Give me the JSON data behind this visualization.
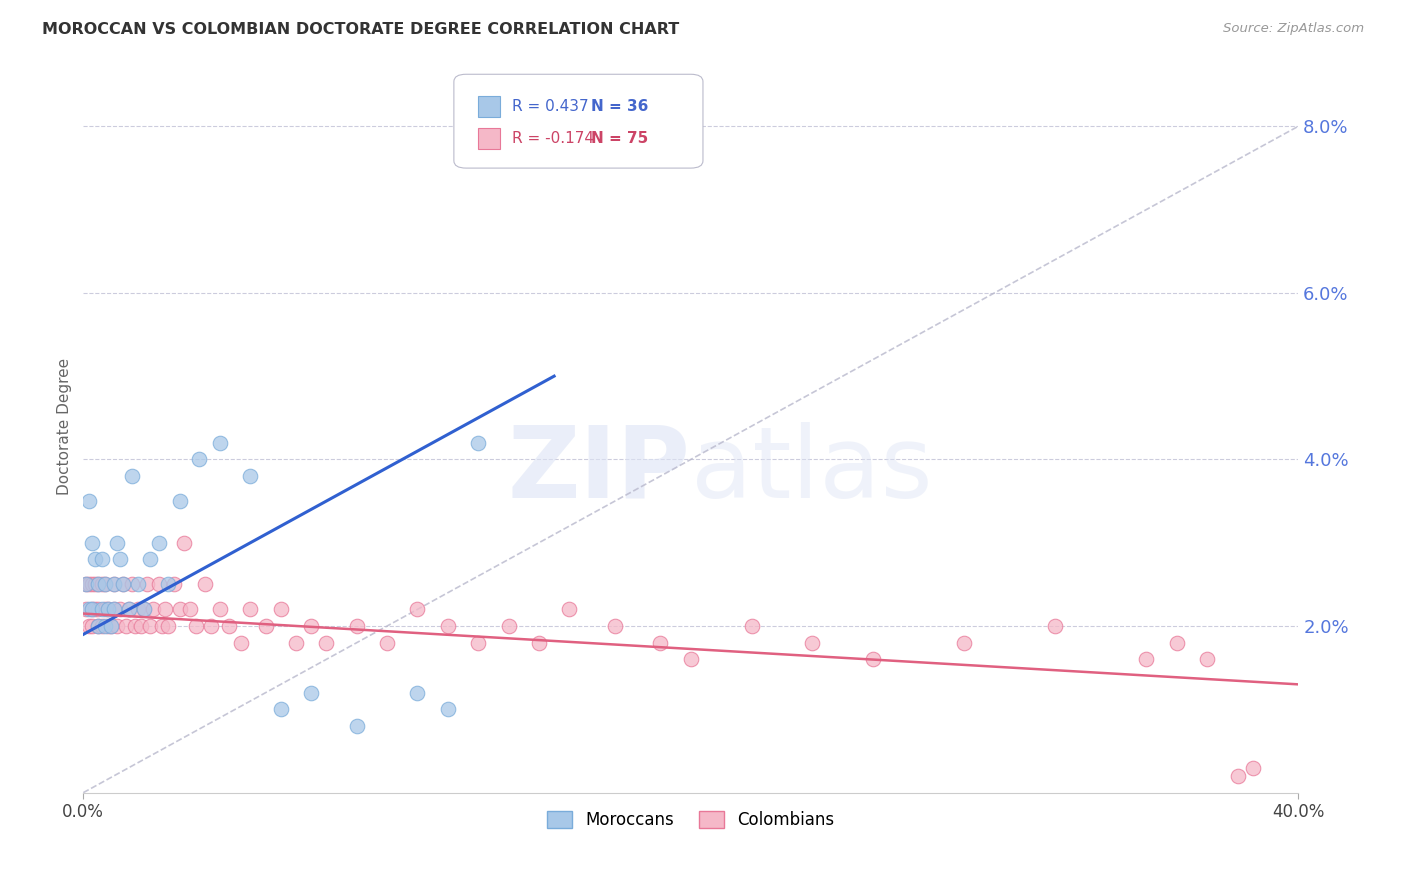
{
  "title": "MOROCCAN VS COLOMBIAN DOCTORATE DEGREE CORRELATION CHART",
  "source": "Source: ZipAtlas.com",
  "ylabel": "Doctorate Degree",
  "xlim": [
    0.0,
    0.4
  ],
  "ylim": [
    0.0,
    0.088
  ],
  "moroccan_color": "#a8c8e8",
  "moroccan_edge": "#7aacda",
  "colombian_color": "#f5b8c8",
  "colombian_edge": "#e87898",
  "blue_line_color": "#3060d0",
  "pink_line_color": "#e06080",
  "dashed_line_color": "#b8b8cc",
  "R_moroccan": 0.437,
  "N_moroccan": 36,
  "R_colombian": -0.174,
  "N_colombian": 75,
  "watermark": "ZIPatlas",
  "moroccan_x": [
    0.001,
    0.002,
    0.002,
    0.003,
    0.003,
    0.004,
    0.005,
    0.005,
    0.006,
    0.006,
    0.007,
    0.007,
    0.008,
    0.009,
    0.01,
    0.01,
    0.011,
    0.012,
    0.013,
    0.015,
    0.016,
    0.018,
    0.02,
    0.022,
    0.025,
    0.028,
    0.032,
    0.038,
    0.045,
    0.055,
    0.065,
    0.075,
    0.09,
    0.11,
    0.12,
    0.13
  ],
  "moroccan_y": [
    0.025,
    0.022,
    0.035,
    0.03,
    0.022,
    0.028,
    0.02,
    0.025,
    0.022,
    0.028,
    0.02,
    0.025,
    0.022,
    0.02,
    0.025,
    0.022,
    0.03,
    0.028,
    0.025,
    0.022,
    0.038,
    0.025,
    0.022,
    0.028,
    0.03,
    0.025,
    0.035,
    0.04,
    0.042,
    0.038,
    0.01,
    0.012,
    0.008,
    0.012,
    0.01,
    0.042
  ],
  "colombian_x": [
    0.001,
    0.001,
    0.002,
    0.002,
    0.003,
    0.003,
    0.003,
    0.004,
    0.004,
    0.005,
    0.005,
    0.005,
    0.006,
    0.006,
    0.007,
    0.007,
    0.008,
    0.008,
    0.009,
    0.01,
    0.01,
    0.011,
    0.012,
    0.013,
    0.014,
    0.015,
    0.016,
    0.017,
    0.018,
    0.019,
    0.02,
    0.021,
    0.022,
    0.023,
    0.025,
    0.026,
    0.027,
    0.028,
    0.03,
    0.032,
    0.033,
    0.035,
    0.037,
    0.04,
    0.042,
    0.045,
    0.048,
    0.052,
    0.055,
    0.06,
    0.065,
    0.07,
    0.075,
    0.08,
    0.09,
    0.1,
    0.11,
    0.12,
    0.13,
    0.14,
    0.15,
    0.16,
    0.175,
    0.19,
    0.2,
    0.22,
    0.24,
    0.26,
    0.29,
    0.32,
    0.35,
    0.36,
    0.37,
    0.38,
    0.385
  ],
  "colombian_y": [
    0.022,
    0.025,
    0.02,
    0.025,
    0.022,
    0.025,
    0.02,
    0.022,
    0.025,
    0.02,
    0.022,
    0.025,
    0.02,
    0.025,
    0.022,
    0.025,
    0.02,
    0.022,
    0.02,
    0.022,
    0.025,
    0.02,
    0.022,
    0.025,
    0.02,
    0.022,
    0.025,
    0.02,
    0.022,
    0.02,
    0.022,
    0.025,
    0.02,
    0.022,
    0.025,
    0.02,
    0.022,
    0.02,
    0.025,
    0.022,
    0.03,
    0.022,
    0.02,
    0.025,
    0.02,
    0.022,
    0.02,
    0.018,
    0.022,
    0.02,
    0.022,
    0.018,
    0.02,
    0.018,
    0.02,
    0.018,
    0.022,
    0.02,
    0.018,
    0.02,
    0.018,
    0.022,
    0.02,
    0.018,
    0.016,
    0.02,
    0.018,
    0.016,
    0.018,
    0.02,
    0.016,
    0.018,
    0.016,
    0.002,
    0.003
  ],
  "blue_line_x": [
    0.0,
    0.155
  ],
  "blue_line_y": [
    0.019,
    0.05
  ],
  "pink_line_x": [
    0.0,
    0.4
  ],
  "pink_line_y": [
    0.0215,
    0.013
  ],
  "diag_line_x": [
    0.0,
    0.4
  ],
  "diag_line_y": [
    0.0,
    0.08
  ]
}
